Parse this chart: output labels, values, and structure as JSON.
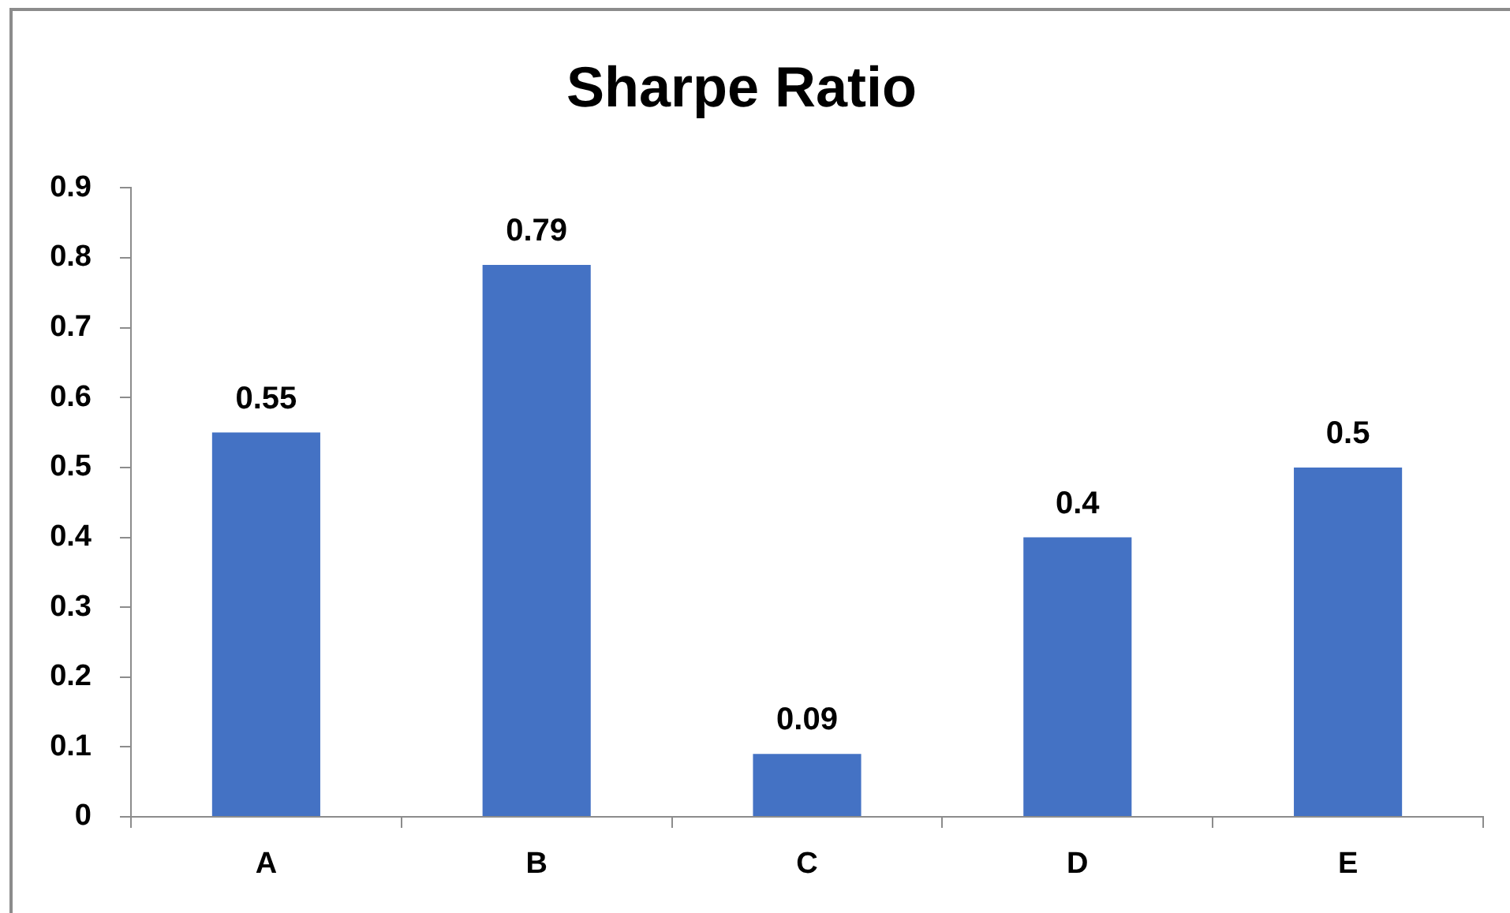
{
  "chart_data": {
    "type": "bar",
    "title": "Sharpe Ratio",
    "categories": [
      "A",
      "B",
      "C",
      "D",
      "E"
    ],
    "values": [
      0.55,
      0.79,
      0.09,
      0.4,
      0.5
    ],
    "color": "#4472c4",
    "ylim": [
      0,
      0.9
    ],
    "yticks": [
      0,
      0.1,
      0.2,
      0.3,
      0.4,
      0.5,
      0.6,
      0.7,
      0.8,
      0.9
    ],
    "data_labels": true
  }
}
